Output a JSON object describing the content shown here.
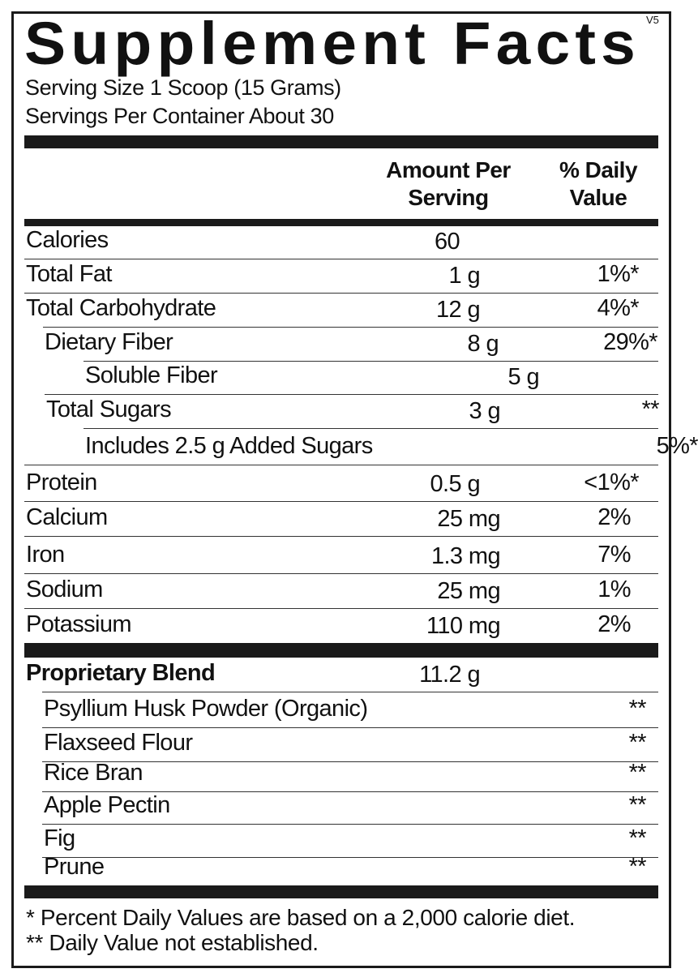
{
  "title": "Supplement Facts",
  "version": "V5",
  "serving_size": "Serving Size 1 Scoop (15 Grams)",
  "servings_per_container": "Servings Per Container About 30",
  "header": {
    "amount_line1": "Amount Per",
    "amount_line2": "Serving",
    "dv_line1": "% Daily",
    "dv_line2": "Value"
  },
  "nutrients": [
    {
      "name": "Calories",
      "amount": "60",
      "dv": ""
    },
    {
      "name": "Total Fat",
      "amount": "1 g",
      "dv": "1%*"
    },
    {
      "name": "Total Carbohydrate",
      "amount": "12 g",
      "dv": "4%*"
    },
    {
      "name": "Dietary Fiber",
      "amount": "8 g",
      "dv": "29%*"
    },
    {
      "name": "Soluble Fiber",
      "amount": "5 g",
      "dv": ""
    },
    {
      "name": "Total Sugars",
      "amount": "3 g",
      "dv": "**"
    },
    {
      "name": "Includes 2.5 g Added Sugars",
      "amount": "",
      "dv": "5%*"
    },
    {
      "name": "Protein",
      "amount": "0.5 g",
      "dv": "<1%*"
    },
    {
      "name": "Calcium",
      "amount": "25 mg",
      "dv": "2%"
    },
    {
      "name": "Iron",
      "amount": "1.3 mg",
      "dv": "7%"
    },
    {
      "name": "Sodium",
      "amount": "25 mg",
      "dv": "1%"
    },
    {
      "name": "Potassium",
      "amount": "110 mg",
      "dv": "2%"
    }
  ],
  "blend": {
    "name": "Proprietary Blend",
    "amount": "11.2 g",
    "ingredients": [
      {
        "name": "Psyllium Husk Powder (Organic)",
        "dv": "**"
      },
      {
        "name": "Flaxseed Flour",
        "dv": "**"
      },
      {
        "name": "Rice Bran",
        "dv": "**"
      },
      {
        "name": "Apple Pectin",
        "dv": "**"
      },
      {
        "name": "Fig",
        "dv": "**"
      },
      {
        "name": "Prune",
        "dv": "**"
      }
    ]
  },
  "footnotes": [
    "* Percent Daily Values are based on a 2,000 calorie diet.",
    "** Daily Value not established."
  ]
}
